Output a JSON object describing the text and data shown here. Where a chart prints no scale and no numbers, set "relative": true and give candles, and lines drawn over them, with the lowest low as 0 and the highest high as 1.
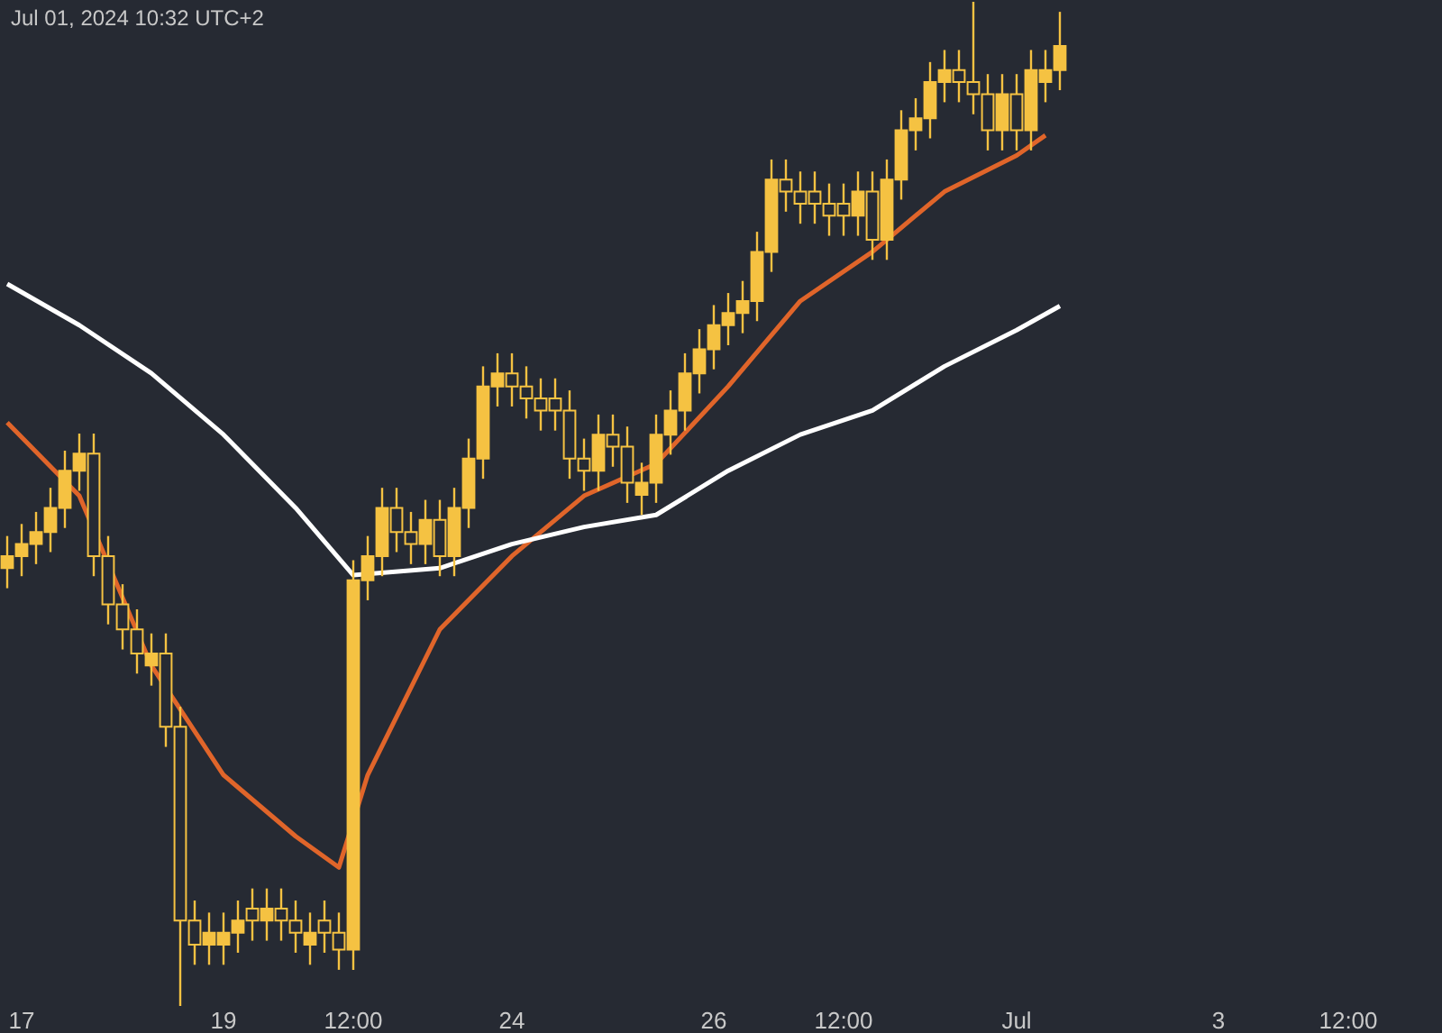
{
  "chart_data": {
    "type": "candlestick",
    "relative": true,
    "annotations": [
      "Jul 01, 2024 10:32 UTC+2"
    ],
    "color": "#f5c242",
    "categories": [
      null,
      "17",
      null,
      null,
      null,
      null,
      null,
      null,
      null,
      null,
      null,
      null,
      null,
      null,
      null,
      "19",
      null,
      null,
      null,
      null,
      null,
      null,
      null,
      null,
      "12:00",
      null,
      null,
      null,
      null,
      null,
      null,
      null,
      null,
      null,
      null,
      "24",
      null,
      null,
      null,
      null,
      null,
      null,
      null,
      null,
      null,
      null,
      null,
      null,
      null,
      "26",
      null,
      null,
      null,
      null,
      null,
      null,
      null,
      null,
      "12:00",
      null,
      null,
      null,
      null,
      null,
      null,
      null,
      null,
      null,
      null,
      null,
      "Jul",
      null,
      null,
      null,
      null,
      null,
      null,
      null,
      null,
      null,
      null,
      null,
      null,
      null,
      "3",
      null,
      null,
      null,
      null,
      null,
      null,
      null,
      null,
      "12:00",
      null,
      null,
      null,
      null,
      null,
      null
    ],
    "ohlc": [
      [
        0.436,
        0.468,
        0.416,
        0.448
      ],
      [
        0.448,
        0.48,
        0.428,
        0.46
      ],
      [
        0.46,
        0.492,
        0.44,
        0.472
      ],
      [
        0.472,
        0.516,
        0.452,
        0.496
      ],
      [
        0.496,
        0.553,
        0.476,
        0.533
      ],
      [
        0.533,
        0.57,
        0.513,
        0.55
      ],
      [
        0.55,
        0.57,
        0.428,
        0.448
      ],
      [
        0.448,
        0.468,
        0.38,
        0.4
      ],
      [
        0.4,
        0.42,
        0.355,
        0.375
      ],
      [
        0.375,
        0.395,
        0.331,
        0.351
      ],
      [
        0.339,
        0.371,
        0.319,
        0.351
      ],
      [
        0.351,
        0.371,
        0.258,
        0.278
      ],
      [
        0.278,
        0.298,
        0.0,
        0.085
      ],
      [
        0.085,
        0.105,
        0.041,
        0.061
      ],
      [
        0.061,
        0.093,
        0.041,
        0.073
      ],
      [
        0.061,
        0.093,
        0.041,
        0.073
      ],
      [
        0.073,
        0.105,
        0.053,
        0.085
      ],
      [
        0.097,
        0.117,
        0.065,
        0.085
      ],
      [
        0.085,
        0.117,
        0.065,
        0.097
      ],
      [
        0.097,
        0.117,
        0.065,
        0.085
      ],
      [
        0.085,
        0.105,
        0.053,
        0.073
      ],
      [
        0.061,
        0.093,
        0.041,
        0.073
      ],
      [
        0.085,
        0.105,
        0.053,
        0.073
      ],
      [
        0.073,
        0.093,
        0.036,
        0.056
      ],
      [
        0.056,
        0.444,
        0.036,
        0.424
      ],
      [
        0.424,
        0.468,
        0.404,
        0.448
      ],
      [
        0.448,
        0.516,
        0.428,
        0.496
      ],
      [
        0.496,
        0.516,
        0.452,
        0.472
      ],
      [
        0.472,
        0.492,
        0.44,
        0.46
      ],
      [
        0.46,
        0.504,
        0.44,
        0.484
      ],
      [
        0.484,
        0.504,
        0.428,
        0.448
      ],
      [
        0.448,
        0.516,
        0.428,
        0.496
      ],
      [
        0.496,
        0.565,
        0.476,
        0.545
      ],
      [
        0.545,
        0.637,
        0.525,
        0.617
      ],
      [
        0.617,
        0.65,
        0.597,
        0.63
      ],
      [
        0.63,
        0.65,
        0.597,
        0.617
      ],
      [
        0.617,
        0.637,
        0.585,
        0.605
      ],
      [
        0.605,
        0.625,
        0.573,
        0.593
      ],
      [
        0.605,
        0.625,
        0.573,
        0.593
      ],
      [
        0.593,
        0.613,
        0.525,
        0.545
      ],
      [
        0.545,
        0.565,
        0.513,
        0.533
      ],
      [
        0.533,
        0.589,
        0.513,
        0.569
      ],
      [
        0.569,
        0.589,
        0.537,
        0.557
      ],
      [
        0.557,
        0.577,
        0.501,
        0.521
      ],
      [
        0.509,
        0.541,
        0.489,
        0.521
      ],
      [
        0.521,
        0.589,
        0.501,
        0.569
      ],
      [
        0.569,
        0.613,
        0.549,
        0.593
      ],
      [
        0.593,
        0.65,
        0.573,
        0.63
      ],
      [
        0.63,
        0.674,
        0.61,
        0.654
      ],
      [
        0.654,
        0.698,
        0.634,
        0.678
      ],
      [
        0.678,
        0.71,
        0.658,
        0.69
      ],
      [
        0.69,
        0.722,
        0.67,
        0.702
      ],
      [
        0.702,
        0.771,
        0.682,
        0.751
      ],
      [
        0.751,
        0.843,
        0.731,
        0.823
      ],
      [
        0.823,
        0.843,
        0.791,
        0.811
      ],
      [
        0.811,
        0.831,
        0.779,
        0.799
      ],
      [
        0.811,
        0.831,
        0.779,
        0.799
      ],
      [
        0.799,
        0.819,
        0.767,
        0.787
      ],
      [
        0.799,
        0.819,
        0.767,
        0.787
      ],
      [
        0.787,
        0.831,
        0.767,
        0.811
      ],
      [
        0.811,
        0.831,
        0.743,
        0.763
      ],
      [
        0.763,
        0.843,
        0.743,
        0.823
      ],
      [
        0.823,
        0.892,
        0.803,
        0.872
      ],
      [
        0.872,
        0.904,
        0.852,
        0.884
      ],
      [
        0.884,
        0.94,
        0.864,
        0.92
      ],
      [
        0.92,
        0.952,
        0.9,
        0.932
      ],
      [
        0.932,
        0.952,
        0.9,
        0.92
      ],
      [
        0.92,
        1.0,
        0.888,
        0.908
      ],
      [
        0.908,
        0.928,
        0.852,
        0.872
      ],
      [
        0.872,
        0.928,
        0.852,
        0.908
      ],
      [
        0.908,
        0.928,
        0.852,
        0.872
      ],
      [
        0.872,
        0.952,
        0.852,
        0.932
      ],
      [
        0.92,
        0.952,
        0.9,
        0.932
      ],
      [
        0.932,
        0.99,
        0.912,
        0.956
      ],
      null,
      null,
      null,
      null,
      null,
      null,
      null,
      null,
      null,
      null,
      null,
      null,
      null,
      null,
      null,
      null,
      null,
      null,
      null,
      null,
      null,
      null,
      null,
      null,
      null,
      null
    ],
    "series": [
      {
        "type": "line",
        "color": "#e0652a",
        "values": [
          0.581,
          null,
          null,
          null,
          null,
          0.508,
          null,
          null,
          null,
          null,
          0.339,
          null,
          null,
          null,
          null,
          0.23,
          null,
          null,
          null,
          null,
          0.169,
          null,
          null,
          0.138,
          null,
          0.23,
          null,
          null,
          null,
          null,
          0.375,
          null,
          null,
          null,
          null,
          0.448,
          null,
          null,
          null,
          null,
          0.508,
          null,
          null,
          null,
          null,
          0.54,
          null,
          null,
          null,
          null,
          0.617,
          null,
          null,
          null,
          null,
          0.702,
          null,
          null,
          null,
          null,
          0.751,
          null,
          null,
          null,
          null,
          0.811,
          null,
          null,
          null,
          null,
          0.847,
          null,
          0.867,
          null,
          null,
          null,
          null,
          null,
          null,
          null,
          null,
          null,
          null,
          null,
          null,
          null,
          null,
          null,
          null,
          null,
          null,
          null,
          null,
          null,
          null,
          null,
          null,
          null,
          null,
          null
        ]
      },
      {
        "type": "line",
        "color": "#ffffff",
        "values": [
          0.719,
          null,
          null,
          null,
          null,
          0.678,
          null,
          null,
          null,
          null,
          0.63,
          null,
          null,
          null,
          null,
          0.569,
          null,
          null,
          null,
          null,
          0.496,
          null,
          null,
          null,
          0.429,
          null,
          null,
          null,
          null,
          null,
          0.436,
          null,
          null,
          null,
          null,
          0.46,
          null,
          null,
          null,
          null,
          0.477,
          null,
          null,
          null,
          null,
          0.489,
          null,
          null,
          null,
          null,
          0.533,
          null,
          null,
          null,
          null,
          0.569,
          null,
          null,
          null,
          null,
          0.593,
          null,
          null,
          null,
          null,
          0.637,
          null,
          null,
          null,
          null,
          0.673,
          null,
          null,
          0.697,
          null,
          null,
          null,
          null,
          null,
          null,
          null,
          null,
          null,
          null,
          null,
          null,
          null,
          null,
          null,
          null,
          null,
          null,
          null,
          null,
          null,
          null,
          null,
          null,
          null,
          null
        ]
      }
    ]
  }
}
